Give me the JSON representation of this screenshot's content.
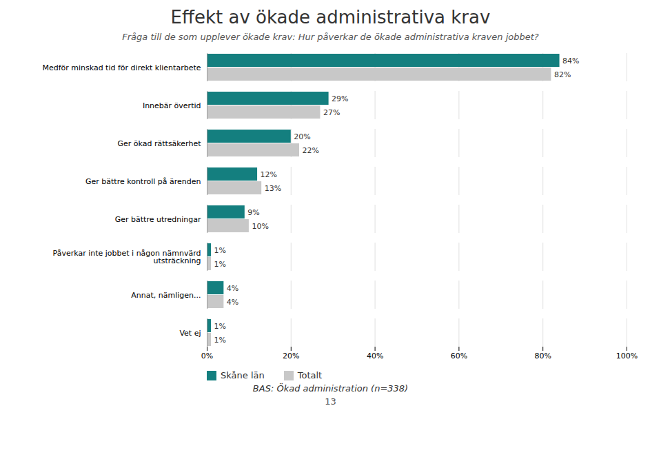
{
  "chart_data": {
    "type": "bar",
    "orientation": "horizontal",
    "title": "Effekt av ökade administrativa krav",
    "subtitle": "Fråga till de som upplever ökade krav: Hur påverkar de ökade administrativa kraven jobbet?",
    "categories": [
      "Medför minskad tid för direkt klientarbete",
      "Innebär övertid",
      "Ger ökad rättsäkerhet",
      "Ger bättre kontroll på ärenden",
      "Ger bättre utredningar",
      "Påverkar inte jobbet i någon nämnvärd\nutsträckning",
      "Annat, nämligen...",
      "Vet ej"
    ],
    "series": [
      {
        "name": "Skåne län",
        "color": "#147F7F",
        "values": [
          84,
          29,
          20,
          12,
          9,
          1,
          4,
          1
        ],
        "value_labels": [
          "84%",
          "29%",
          "20%",
          "12%",
          "9%",
          "1%",
          "4%",
          "1%"
        ]
      },
      {
        "name": "Totalt",
        "color": "#C8C8C8",
        "values": [
          82,
          27,
          22,
          13,
          10,
          1,
          4,
          1
        ],
        "value_labels": [
          "82%",
          "27%",
          "22%",
          "13%",
          "10%",
          "1%",
          "4%",
          "1%"
        ]
      }
    ],
    "xlim": [
      0,
      100
    ],
    "xticks": [
      {
        "value": 0,
        "label": "0%"
      },
      {
        "value": 20,
        "label": "20%"
      },
      {
        "value": 40,
        "label": "40%"
      },
      {
        "value": 60,
        "label": "60%"
      },
      {
        "value": 80,
        "label": "80%"
      },
      {
        "value": 100,
        "label": "100%"
      }
    ],
    "grid": true,
    "data_labels": true,
    "legend": "lower left",
    "footer": "BAS: Ökad administration (n=338)",
    "page_number": "13"
  }
}
